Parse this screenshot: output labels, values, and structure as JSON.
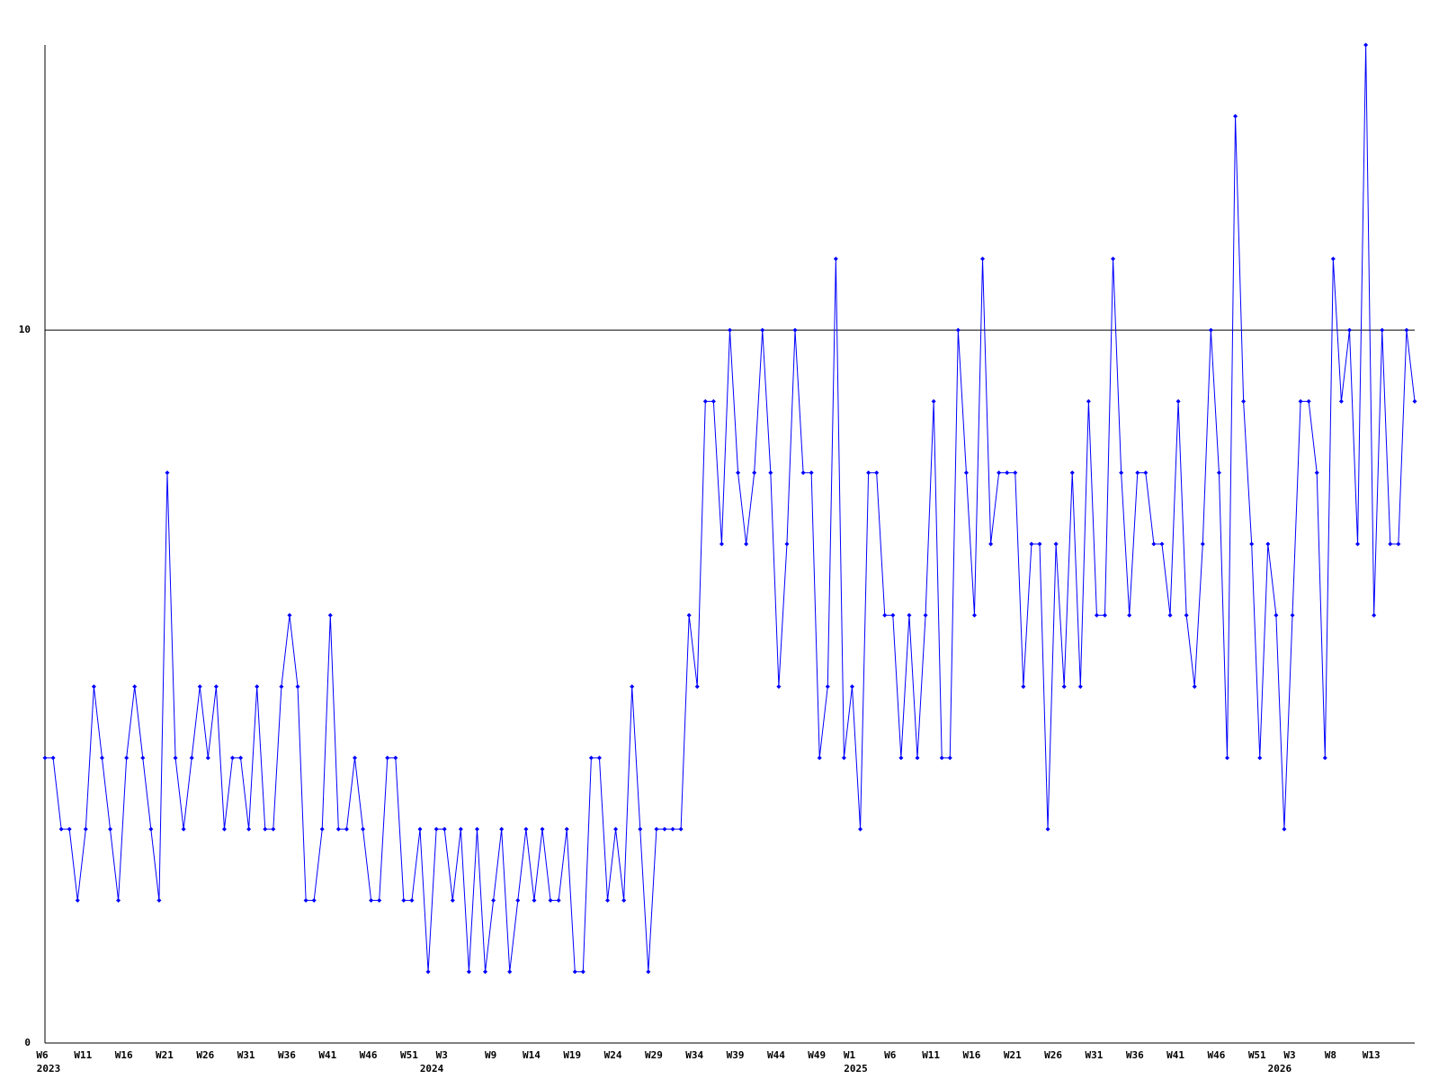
{
  "chart_data": {
    "type": "line",
    "categories": [
      "W6",
      null,
      null,
      null,
      null,
      "W11",
      null,
      null,
      null,
      null,
      "W16",
      null,
      null,
      null,
      null,
      "W21",
      null,
      null,
      null,
      null,
      "W26",
      null,
      null,
      null,
      null,
      "W31",
      null,
      null,
      null,
      null,
      "W36",
      null,
      null,
      null,
      null,
      "W41",
      null,
      null,
      null,
      null,
      "W46",
      null,
      null,
      null,
      null,
      "W51",
      null,
      null,
      null,
      "W3",
      null,
      null,
      null,
      null,
      null,
      "W9",
      null,
      null,
      null,
      null,
      "W14",
      null,
      null,
      null,
      null,
      "W19",
      null,
      null,
      null,
      null,
      "W24",
      null,
      null,
      null,
      null,
      "W29",
      null,
      null,
      null,
      null,
      "W34",
      null,
      null,
      null,
      null,
      "W39",
      null,
      null,
      null,
      null,
      "W44",
      null,
      null,
      null,
      null,
      "W49",
      null,
      null,
      null,
      "W1",
      null,
      null,
      null,
      null,
      "W6",
      null,
      null,
      null,
      null,
      "W11",
      null,
      null,
      null,
      null,
      "W16",
      null,
      null,
      null,
      null,
      "W21",
      null,
      null,
      null,
      null,
      "W26",
      null,
      null,
      null,
      null,
      "W31",
      null,
      null,
      null,
      null,
      "W36",
      null,
      null,
      null,
      null,
      "W41",
      null,
      null,
      null,
      null,
      "W46",
      null,
      null,
      null,
      null,
      "W51",
      null,
      null,
      null,
      "W3",
      null,
      null,
      null,
      null,
      "W8",
      null,
      null,
      null,
      null,
      "W13",
      null,
      null,
      null,
      null,
      null
    ],
    "year_labels": [
      "2023",
      null,
      null,
      null,
      null,
      null,
      null,
      null,
      null,
      null,
      null,
      null,
      null,
      null,
      null,
      null,
      null,
      null,
      null,
      null,
      null,
      null,
      null,
      null,
      null,
      null,
      null,
      null,
      null,
      null,
      null,
      null,
      null,
      null,
      null,
      null,
      null,
      null,
      null,
      null,
      null,
      null,
      null,
      null,
      null,
      null,
      null,
      "2024",
      null,
      null,
      null,
      null,
      null,
      null,
      null,
      null,
      null,
      null,
      null,
      null,
      null,
      null,
      null,
      null,
      null,
      null,
      null,
      null,
      null,
      null,
      null,
      null,
      null,
      null,
      null,
      null,
      null,
      null,
      null,
      null,
      null,
      null,
      null,
      null,
      null,
      null,
      null,
      null,
      null,
      null,
      null,
      null,
      null,
      null,
      null,
      null,
      null,
      null,
      null,
      "2025",
      null,
      null,
      null,
      null,
      null,
      null,
      null,
      null,
      null,
      null,
      null,
      null,
      null,
      null,
      null,
      null,
      null,
      null,
      null,
      null,
      null,
      null,
      null,
      null,
      null,
      null,
      null,
      null,
      null,
      null,
      null,
      null,
      null,
      null,
      null,
      null,
      null,
      null,
      null,
      null,
      null,
      null,
      null,
      null,
      null,
      null,
      null,
      null,
      null,
      null,
      null,
      "2026",
      null,
      null,
      null,
      null,
      null,
      null,
      null,
      null,
      null,
      null,
      null,
      null,
      null,
      null,
      null,
      null,
      null
    ],
    "values": [
      4,
      4,
      3,
      3,
      2,
      3,
      5,
      4,
      3,
      2,
      4,
      5,
      4,
      3,
      2,
      8,
      4,
      3,
      4,
      5,
      4,
      5,
      3,
      4,
      4,
      3,
      5,
      3,
      3,
      5,
      6,
      5,
      2,
      2,
      3,
      6,
      3,
      3,
      4,
      3,
      2,
      2,
      4,
      4,
      2,
      2,
      3,
      1,
      3,
      3,
      2,
      3,
      1,
      3,
      1,
      2,
      3,
      1,
      2,
      3,
      2,
      3,
      2,
      2,
      3,
      1,
      1,
      4,
      4,
      2,
      3,
      2,
      5,
      3,
      1,
      3,
      3,
      3,
      3,
      6,
      5,
      9,
      9,
      7,
      10,
      8,
      7,
      8,
      10,
      8,
      5,
      7,
      10,
      8,
      8,
      4,
      5,
      11,
      4,
      5,
      3,
      8,
      8,
      6,
      6,
      4,
      6,
      4,
      6,
      9,
      4,
      4,
      10,
      8,
      6,
      11,
      7,
      8,
      8,
      8,
      5,
      7,
      7,
      3,
      7,
      5,
      8,
      5,
      9,
      6,
      6,
      11,
      8,
      6,
      8,
      8,
      7,
      7,
      6,
      9,
      6,
      5,
      7,
      10,
      8,
      4,
      13,
      9,
      7,
      4,
      7,
      6,
      3,
      6,
      9,
      9,
      8,
      4,
      11,
      9,
      10,
      7,
      14,
      6,
      10,
      7,
      7,
      10,
      9
    ],
    "color": "#0000ff",
    "ylim": [
      0,
      14
    ],
    "yticks": [
      0,
      10
    ],
    "grid": true
  }
}
